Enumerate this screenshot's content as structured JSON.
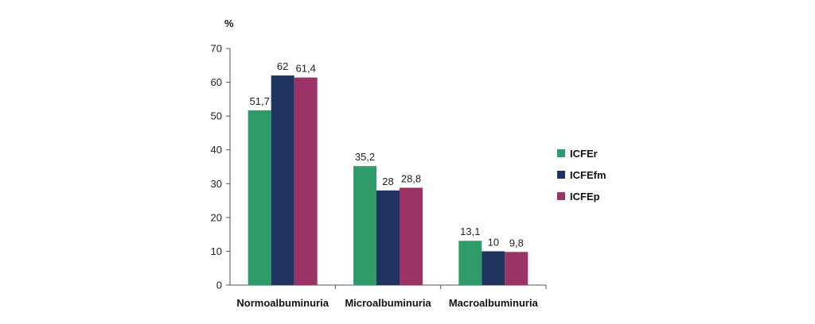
{
  "chart_data": {
    "type": "bar",
    "title": "",
    "xlabel": "",
    "ylabel": "%",
    "ylim": [
      0,
      70
    ],
    "yticks": [
      0,
      10,
      20,
      30,
      40,
      50,
      60,
      70
    ],
    "grid": false,
    "legend_position": "right",
    "categories": [
      "Normoalbuminuria",
      "Microalbuminuria",
      "Macroalbuminuria"
    ],
    "series": [
      {
        "name": "ICFEr",
        "values": [
          51.7,
          35.2,
          13.1
        ],
        "labels": [
          "51,7",
          "35,2",
          "13,1"
        ],
        "color": "#2e9b68"
      },
      {
        "name": "ICFEfm",
        "values": [
          62,
          28,
          10
        ],
        "labels": [
          "62",
          "28",
          "10"
        ],
        "color": "#1f3560"
      },
      {
        "name": "ICFEp",
        "values": [
          61.4,
          28.8,
          9.8
        ],
        "labels": [
          "61,4",
          "28,8",
          "9,8"
        ],
        "color": "#9c3366"
      }
    ]
  }
}
